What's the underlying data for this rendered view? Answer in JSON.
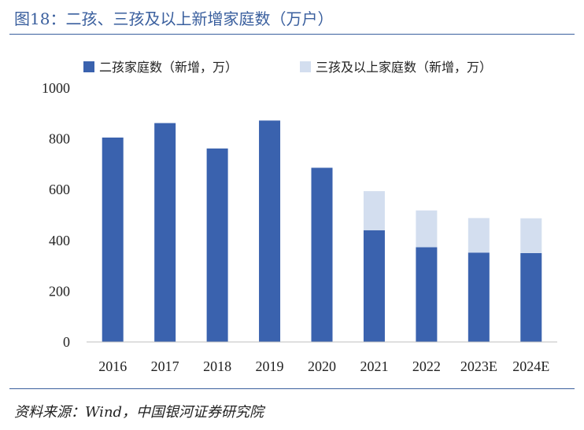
{
  "title": "图18：二孩、三孩及以上新增家庭数（万户）",
  "source": "资料来源：Wind，中国银河证券研究院",
  "chart_data": {
    "type": "bar",
    "stacked": true,
    "title": "图18：二孩、三孩及以上新增家庭数（万户）",
    "categories": [
      "2016",
      "2017",
      "2018",
      "2019",
      "2020",
      "2021",
      "2022",
      "2023E",
      "2024E"
    ],
    "series": [
      {
        "name": "二孩家庭数（新增，万）",
        "color": "#3a62ae",
        "values": [
          805,
          862,
          762,
          872,
          686,
          440,
          373,
          352,
          350
        ]
      },
      {
        "name": "三孩及以上家庭数（新增，万）",
        "color": "#d3deef",
        "values": [
          0,
          0,
          0,
          0,
          0,
          154,
          145,
          136,
          137
        ]
      }
    ],
    "ylim": [
      0,
      1000
    ],
    "yticks": [
      0,
      200,
      400,
      600,
      800,
      1000
    ],
    "grid": false,
    "legend_position": "top"
  }
}
